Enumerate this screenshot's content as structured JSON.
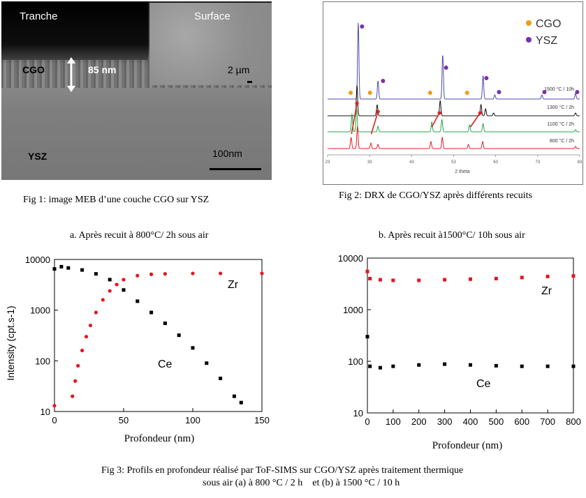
{
  "fig1": {
    "label_tranche": "Tranche",
    "label_surface": "Surface",
    "label_cgo": "CGO",
    "label_thickness": "85 nm",
    "label_scale_inset": "2 µm",
    "label_ysz": "YSZ",
    "label_scale_main": "100nm",
    "caption": "Fig 1: image MEB d’une couche CGO sur YSZ"
  },
  "fig2": {
    "caption": "Fig 2: DRX de CGO/YSZ après différents recuits",
    "legend": [
      {
        "name": "CGO",
        "color": "#f29a1a"
      },
      {
        "name": "YSZ",
        "color": "#7b2fa8"
      }
    ],
    "xlabel": "2 theta",
    "xticks": [
      "23",
      "33",
      "43",
      "53",
      "63",
      "73",
      "83"
    ],
    "curves": [
      {
        "label": "1500 °C / 10h",
        "color": "#4b4bb0"
      },
      {
        "label": "1300 °C / 2h",
        "color": "#111111"
      },
      {
        "label": "1100 °C / 2h",
        "color": "#22aa44"
      },
      {
        "label": "800 °C / 2h",
        "color": "#dd2222"
      }
    ]
  },
  "fig3": {
    "caption_line1": "Fig 3: Profils en profondeur réalisé par ToF-SIMS sur CGO/YSZ après traitement thermique",
    "caption_line2": "sous air (a) à 800 °C / 2 h    et (b) à 1500 °C / 10 h",
    "ylabel": "Intensity (cpt.s-1)",
    "panel_a": {
      "title": "a. Après recuit à 800°C/ 2h sous air"
    },
    "panel_b": {
      "title": "b. Après recuit à1500°C/ 10h sous air"
    }
  },
  "chart_data": [
    {
      "type": "scatter",
      "title": "a. Après recuit à 800°C/ 2h sous air",
      "xlabel": "Profondeur  (nm)",
      "ylabel": "Intensity (cpt.s-1)",
      "xlim": [
        0,
        150
      ],
      "ylim": [
        10,
        10000
      ],
      "yscale": "log",
      "xticks": [
        "0",
        "50",
        "100",
        "150"
      ],
      "yticks": [
        "10",
        "100",
        "1000",
        "10000"
      ],
      "series": [
        {
          "name": "Zr",
          "color": "#e8141e",
          "x": [
            0,
            13,
            15,
            17,
            20,
            23,
            26,
            30,
            35,
            40,
            45,
            50,
            60,
            70,
            80,
            100,
            120,
            150
          ],
          "y": [
            13,
            20,
            40,
            80,
            160,
            300,
            500,
            900,
            1600,
            2400,
            3200,
            4000,
            4800,
            5100,
            5200,
            5300,
            5300,
            5300
          ]
        },
        {
          "name": "Ce",
          "color": "#000000",
          "x": [
            0,
            5,
            10,
            20,
            30,
            40,
            50,
            60,
            70,
            80,
            90,
            100,
            110,
            120,
            130,
            135
          ],
          "y": [
            6500,
            7200,
            6800,
            6200,
            5200,
            4000,
            2500,
            1500,
            900,
            550,
            320,
            180,
            90,
            45,
            20,
            15
          ]
        }
      ]
    },
    {
      "type": "scatter",
      "title": "b. Après recuit à1500°C/ 10h sous air",
      "xlabel": "Profondeur (nm)",
      "ylabel": "Intensity (cpt.s-1)",
      "xlim": [
        0,
        800
      ],
      "ylim": [
        10,
        10000
      ],
      "yscale": "log",
      "xticks": [
        "0",
        "100",
        "200",
        "300",
        "400",
        "500",
        "600",
        "700",
        "800"
      ],
      "yticks": [
        "10",
        "100",
        "1000",
        "10000"
      ],
      "series": [
        {
          "name": "Zr",
          "color": "#e8141e",
          "x": [
            0,
            10,
            50,
            100,
            200,
            300,
            400,
            500,
            600,
            700,
            800
          ],
          "y": [
            5500,
            4000,
            3800,
            3700,
            3700,
            3800,
            3900,
            4000,
            4200,
            4400,
            4500
          ]
        },
        {
          "name": "Ce",
          "color": "#000000",
          "x": [
            0,
            10,
            50,
            100,
            200,
            300,
            400,
            500,
            600,
            700,
            800
          ],
          "y": [
            300,
            80,
            75,
            80,
            85,
            88,
            85,
            82,
            80,
            80,
            80
          ]
        }
      ]
    }
  ]
}
